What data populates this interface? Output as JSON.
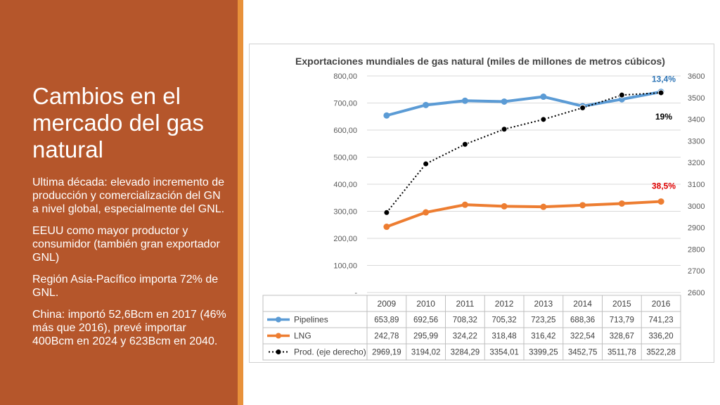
{
  "slide": {
    "title": "Cambios en el mercado del gas natural",
    "bullets": [
      "Ultima década: elevado incremento de producción y comercialización del GN a nivel global, especialmente del GNL.",
      "EEUU como mayor productor y consumidor (también gran exportador GNL)",
      "Región Asia-Pacífico importa 72% de GNL.",
      "China: importó 52,6Bcm en 2017 (46% más que 2016), prevé importar  400Bcm en 2024 y 623Bcm en 2040."
    ],
    "colors": {
      "panel": "#b5562b",
      "accent": "#e8913a",
      "text": "#ffffff"
    }
  },
  "chart_data": {
    "type": "line",
    "title": "Exportaciones mundiales de gas natural (miles de millones de metros cúbicos)",
    "categories": [
      "2009",
      "2010",
      "2011",
      "2012",
      "2013",
      "2014",
      "2015",
      "2016"
    ],
    "y_left": {
      "ylim": [
        0,
        800
      ],
      "ticks": [
        "-",
        "100,00",
        "200,00",
        "300,00",
        "400,00",
        "500,00",
        "600,00",
        "700,00",
        "800,00"
      ]
    },
    "y_right": {
      "ylim": [
        2600,
        3600
      ],
      "ticks": [
        "2600",
        "2700",
        "2800",
        "2900",
        "3000",
        "3100",
        "3200",
        "3300",
        "3400",
        "3500",
        "3600"
      ]
    },
    "series": [
      {
        "name": "Pipelines",
        "axis": "left",
        "color": "#5b9bd5",
        "style": "solid",
        "values": [
          653.89,
          692.56,
          708.32,
          705.32,
          723.25,
          688.36,
          713.79,
          741.23
        ],
        "labels": [
          "653,89",
          "692,56",
          "708,32",
          "705,32",
          "723,25",
          "688,36",
          "713,79",
          "741,23"
        ]
      },
      {
        "name": "LNG",
        "axis": "left",
        "color": "#ed7d31",
        "style": "solid",
        "values": [
          242.78,
          295.99,
          324.22,
          318.48,
          316.42,
          322.54,
          328.67,
          336.2
        ],
        "labels": [
          "242,78",
          "295,99",
          "324,22",
          "318,48",
          "316,42",
          "322,54",
          "328,67",
          "336,20"
        ]
      },
      {
        "name": "Prod. (eje derecho)",
        "axis": "right",
        "color": "#000000",
        "style": "dotted",
        "values": [
          2969.19,
          3194.02,
          3284.29,
          3354.01,
          3399.25,
          3452.75,
          3511.78,
          3522.28
        ],
        "labels": [
          "2969,19",
          "3194,02",
          "3284,29",
          "3354,01",
          "3399,25",
          "3452,75",
          "3511,78",
          "3522,28"
        ]
      }
    ],
    "annotations": [
      {
        "text": "13,4%",
        "color": "#2e75b6",
        "series": "Pipelines"
      },
      {
        "text": "19%",
        "color": "#000000",
        "series": "Prod. (eje derecho)"
      },
      {
        "text": "38,5%",
        "color": "#e00000",
        "series": "LNG"
      }
    ],
    "data_table": true,
    "grid": "horizontal"
  }
}
